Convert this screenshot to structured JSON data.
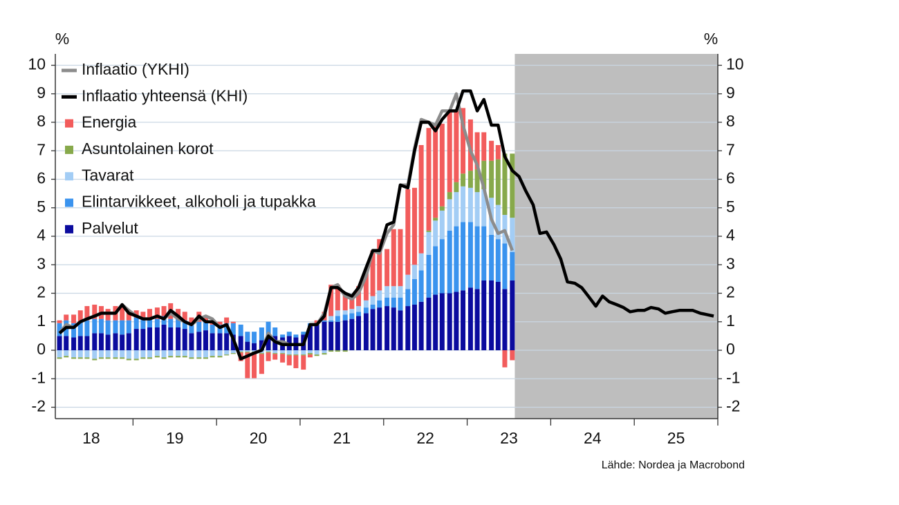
{
  "chart_data": {
    "type": "bar",
    "stacked": true,
    "y_unit_label": "%",
    "y2_unit_label": "%",
    "source": "Lähde: Nordea ja Macrobond",
    "xlim": [
      2018.07,
      2026.0
    ],
    "ylim": [
      -2.4,
      10.4
    ],
    "y2lim": [
      -2.4,
      10.4
    ],
    "yticks": [
      -2,
      -1,
      0,
      1,
      2,
      3,
      4,
      5,
      6,
      7,
      8,
      9,
      10
    ],
    "y2ticks": [
      -2,
      -1,
      0,
      1,
      2,
      3,
      4,
      5,
      6,
      7,
      8,
      9,
      10
    ],
    "xticks": [
      2019,
      2020,
      2021,
      2022,
      2023,
      2024,
      2025,
      2026
    ],
    "xtick_labels": [
      {
        "value": 2018.5,
        "label": "18"
      },
      {
        "value": 2019.5,
        "label": "19"
      },
      {
        "value": 2020.5,
        "label": "20"
      },
      {
        "value": 2021.5,
        "label": "21"
      },
      {
        "value": 2022.5,
        "label": "22"
      },
      {
        "value": 2023.5,
        "label": "23"
      },
      {
        "value": 2024.5,
        "label": "24"
      },
      {
        "value": 2025.5,
        "label": "25"
      }
    ],
    "grid": true,
    "legend": "upper left",
    "forecast_region": [
      2023.57,
      2026.0
    ],
    "forecast_color": "#bebebe",
    "x": [
      2018.12,
      2018.2,
      2018.29,
      2018.37,
      2018.45,
      2018.54,
      2018.62,
      2018.7,
      2018.79,
      2018.87,
      2018.95,
      2019.04,
      2019.12,
      2019.2,
      2019.29,
      2019.37,
      2019.45,
      2019.54,
      2019.62,
      2019.7,
      2019.79,
      2019.87,
      2019.95,
      2020.04,
      2020.12,
      2020.2,
      2020.29,
      2020.37,
      2020.45,
      2020.54,
      2020.62,
      2020.7,
      2020.79,
      2020.87,
      2020.95,
      2021.04,
      2021.12,
      2021.2,
      2021.29,
      2021.37,
      2021.45,
      2021.54,
      2021.62,
      2021.7,
      2021.79,
      2021.87,
      2021.95,
      2022.04,
      2022.12,
      2022.2,
      2022.29,
      2022.37,
      2022.45,
      2022.54,
      2022.62,
      2022.7,
      2022.79,
      2022.87,
      2022.95,
      2023.04,
      2023.12,
      2023.2,
      2023.29,
      2023.37,
      2023.45,
      2023.54
    ],
    "series": [
      {
        "name": "Inflaatio (YKHI)",
        "type": "line",
        "color": "#8c8c8c",
        "x": [
          2018.12,
          2018.2,
          2018.29,
          2018.37,
          2018.45,
          2018.54,
          2018.62,
          2018.7,
          2018.79,
          2018.87,
          2018.95,
          2019.04,
          2019.12,
          2019.2,
          2019.29,
          2019.37,
          2019.45,
          2019.54,
          2019.62,
          2019.7,
          2019.79,
          2019.87,
          2019.95,
          2020.04,
          2020.12,
          2020.2,
          2020.29,
          2020.37,
          2020.45,
          2020.54,
          2020.62,
          2020.7,
          2020.79,
          2020.87,
          2020.95,
          2021.04,
          2021.12,
          2021.2,
          2021.29,
          2021.37,
          2021.45,
          2021.54,
          2021.62,
          2021.7,
          2021.79,
          2021.87,
          2021.95,
          2022.04,
          2022.12,
          2022.2,
          2022.29,
          2022.37,
          2022.45,
          2022.54,
          2022.62,
          2022.7,
          2022.79,
          2022.87,
          2022.95,
          2023.04,
          2023.12,
          2023.2,
          2023.29,
          2023.37,
          2023.45,
          2023.54
        ],
        "values": [
          0.6,
          0.9,
          0.8,
          1.0,
          1.1,
          1.2,
          1.3,
          1.3,
          1.3,
          1.6,
          1.4,
          1.2,
          1.1,
          1.1,
          1.2,
          1.1,
          1.3,
          1.1,
          1.0,
          0.9,
          1.1,
          1.2,
          1.1,
          0.8,
          0.9,
          0.4,
          -0.3,
          -0.2,
          -0.1,
          0.0,
          0.6,
          0.3,
          0.3,
          0.2,
          0.2,
          0.2,
          0.9,
          0.9,
          1.3,
          2.2,
          2.3,
          1.9,
          1.8,
          2.0,
          2.6,
          3.5,
          3.4,
          4.1,
          4.4,
          5.8,
          5.8,
          7.1,
          8.1,
          8.0,
          7.9,
          8.4,
          8.4,
          9.0,
          7.9,
          7.0,
          6.5,
          5.7,
          4.6,
          4.1,
          4.2,
          3.5
        ]
      },
      {
        "name": "Inflaatio yhteensä (KHI)",
        "type": "line",
        "color": "#000000",
        "x": [
          2018.12,
          2018.2,
          2018.29,
          2018.37,
          2018.45,
          2018.54,
          2018.62,
          2018.7,
          2018.79,
          2018.87,
          2018.95,
          2019.04,
          2019.12,
          2019.2,
          2019.29,
          2019.37,
          2019.45,
          2019.54,
          2019.62,
          2019.7,
          2019.79,
          2019.87,
          2019.95,
          2020.04,
          2020.12,
          2020.2,
          2020.29,
          2020.37,
          2020.45,
          2020.54,
          2020.62,
          2020.7,
          2020.79,
          2020.87,
          2020.95,
          2021.04,
          2021.12,
          2021.2,
          2021.29,
          2021.37,
          2021.45,
          2021.54,
          2021.62,
          2021.7,
          2021.79,
          2021.87,
          2021.95,
          2022.04,
          2022.12,
          2022.2,
          2022.29,
          2022.37,
          2022.45,
          2022.54,
          2022.62,
          2022.7,
          2022.79,
          2022.87,
          2022.95,
          2023.04,
          2023.12,
          2023.2,
          2023.29,
          2023.37,
          2023.45,
          2023.54,
          2023.62,
          2023.7,
          2023.79,
          2023.87,
          2023.95,
          2024.04,
          2024.12,
          2024.2,
          2024.29,
          2024.37,
          2024.45,
          2024.54,
          2024.62,
          2024.7,
          2024.79,
          2024.87,
          2024.95,
          2025.04,
          2025.12,
          2025.2,
          2025.29,
          2025.37,
          2025.45,
          2025.54,
          2025.62,
          2025.7,
          2025.79,
          2025.87,
          2025.95
        ],
        "values": [
          0.6,
          0.8,
          0.8,
          1.0,
          1.1,
          1.2,
          1.3,
          1.3,
          1.3,
          1.6,
          1.3,
          1.2,
          1.1,
          1.1,
          1.2,
          1.1,
          1.4,
          1.2,
          1.0,
          0.9,
          1.2,
          1.0,
          1.0,
          0.8,
          0.9,
          0.4,
          -0.3,
          -0.2,
          -0.1,
          0.0,
          0.5,
          0.3,
          0.2,
          0.2,
          0.2,
          0.2,
          0.9,
          0.9,
          1.2,
          2.2,
          2.2,
          2.0,
          1.9,
          2.2,
          2.9,
          3.5,
          3.5,
          4.4,
          4.5,
          5.8,
          5.7,
          7.0,
          8.0,
          8.0,
          7.7,
          8.1,
          8.4,
          8.4,
          9.1,
          9.1,
          8.4,
          8.8,
          7.9,
          7.9,
          6.8,
          6.3,
          6.1,
          5.6,
          5.1,
          4.1,
          4.15,
          3.7,
          3.2,
          2.4,
          2.35,
          2.2,
          1.9,
          1.55,
          1.9,
          1.7,
          1.6,
          1.5,
          1.35,
          1.4,
          1.4,
          1.5,
          1.45,
          1.3,
          1.35,
          1.4,
          1.4,
          1.4,
          1.3,
          1.25,
          1.2
        ]
      },
      {
        "name": "Energia",
        "color": "#f25c5c",
        "values": [
          0.1,
          0.2,
          0.3,
          0.4,
          0.5,
          0.5,
          0.45,
          0.4,
          0.5,
          0.5,
          0.35,
          0.25,
          0.25,
          0.3,
          0.4,
          0.35,
          0.55,
          0.35,
          0.3,
          0.2,
          0.35,
          0.2,
          0.1,
          0.1,
          0.2,
          0.05,
          -0.3,
          -0.9,
          -0.9,
          -0.7,
          -0.3,
          -0.2,
          -0.3,
          -0.35,
          -0.45,
          -0.5,
          -0.1,
          0.1,
          0.3,
          1.1,
          0.9,
          0.6,
          0.45,
          0.7,
          1.05,
          1.6,
          1.8,
          1.3,
          2.0,
          2.0,
          3.0,
          2.7,
          3.8,
          3.6,
          3.2,
          2.9,
          2.8,
          2.5,
          2.3,
          1.8,
          1.3,
          1.0,
          0.7,
          0.5,
          -0.6,
          -0.35
        ]
      },
      {
        "name": "Asuntolainen korot",
        "color": "#87a94b",
        "values": [
          -0.05,
          -0.05,
          -0.05,
          -0.05,
          -0.05,
          -0.05,
          -0.05,
          -0.05,
          -0.05,
          -0.05,
          -0.05,
          -0.05,
          -0.05,
          -0.05,
          -0.05,
          -0.05,
          -0.05,
          -0.05,
          -0.05,
          -0.05,
          -0.05,
          -0.05,
          -0.05,
          -0.05,
          -0.03,
          -0.03,
          -0.03,
          -0.03,
          -0.03,
          -0.03,
          -0.03,
          -0.03,
          -0.03,
          -0.03,
          -0.03,
          -0.03,
          -0.05,
          -0.05,
          -0.05,
          -0.05,
          -0.05,
          -0.05,
          0,
          0,
          0,
          0,
          0,
          0,
          0,
          0,
          0,
          0,
          0,
          0.05,
          0.1,
          0.15,
          0.25,
          0.35,
          0.45,
          0.6,
          0.8,
          1.0,
          1.3,
          1.6,
          2.15,
          2.25
        ]
      },
      {
        "name": "Tavarat",
        "color": "#a3cdf5",
        "values": [
          -0.25,
          -0.2,
          -0.25,
          -0.25,
          -0.25,
          -0.3,
          -0.25,
          -0.25,
          -0.25,
          -0.25,
          -0.3,
          -0.3,
          -0.25,
          -0.25,
          -0.2,
          -0.25,
          -0.2,
          -0.2,
          -0.2,
          -0.25,
          -0.25,
          -0.25,
          -0.2,
          -0.2,
          -0.15,
          -0.1,
          -0.05,
          -0.05,
          -0.05,
          -0.1,
          -0.05,
          -0.1,
          -0.1,
          -0.15,
          -0.15,
          -0.15,
          -0.1,
          -0.15,
          -0.1,
          0.15,
          0.2,
          0.15,
          0.15,
          0.2,
          0.25,
          0.3,
          0.35,
          0.4,
          0.4,
          0.4,
          0.5,
          0.5,
          0.6,
          0.8,
          0.9,
          1.0,
          1.1,
          1.2,
          1.25,
          1.2,
          1.2,
          1.3,
          1.3,
          1.2,
          1.0,
          1.2
        ]
      },
      {
        "name": "Elintarvikkeet, alkoholi ja tupakka",
        "color": "#3a93ee",
        "values": [
          0.45,
          0.55,
          0.5,
          0.5,
          0.55,
          0.5,
          0.5,
          0.5,
          0.45,
          0.5,
          0.45,
          0.4,
          0.35,
          0.35,
          0.3,
          0.3,
          0.3,
          0.3,
          0.3,
          0.35,
          0.35,
          0.3,
          0.3,
          0.3,
          0.35,
          0.4,
          0.4,
          0.35,
          0.4,
          0.45,
          0.45,
          0.3,
          0.1,
          0.15,
          0.1,
          0.1,
          0.1,
          0.05,
          0.05,
          0.05,
          0.2,
          0.2,
          0.2,
          0.15,
          0.2,
          0.15,
          0.25,
          0.3,
          0.35,
          0.45,
          0.6,
          0.9,
          1.1,
          1.5,
          1.7,
          1.9,
          2.2,
          2.3,
          2.4,
          2.3,
          2.2,
          1.9,
          1.6,
          1.5,
          1.6,
          1.0
        ]
      },
      {
        "name": "Palvelut",
        "color": "#0b0b9e",
        "values": [
          0.5,
          0.5,
          0.45,
          0.5,
          0.5,
          0.6,
          0.6,
          0.55,
          0.6,
          0.55,
          0.6,
          0.75,
          0.75,
          0.8,
          0.8,
          0.9,
          0.8,
          0.8,
          0.75,
          0.6,
          0.65,
          0.7,
          0.6,
          0.6,
          0.6,
          0.55,
          0.5,
          0.3,
          0.25,
          0.35,
          0.55,
          0.5,
          0.45,
          0.5,
          0.45,
          0.55,
          0.85,
          0.9,
          1.0,
          1.0,
          1.0,
          1.05,
          1.1,
          1.2,
          1.3,
          1.45,
          1.5,
          1.55,
          1.5,
          1.4,
          1.55,
          1.6,
          1.7,
          1.85,
          1.95,
          2.0,
          2.0,
          2.05,
          2.1,
          2.2,
          2.15,
          2.45,
          2.45,
          2.4,
          2.15,
          2.45
        ]
      }
    ]
  }
}
